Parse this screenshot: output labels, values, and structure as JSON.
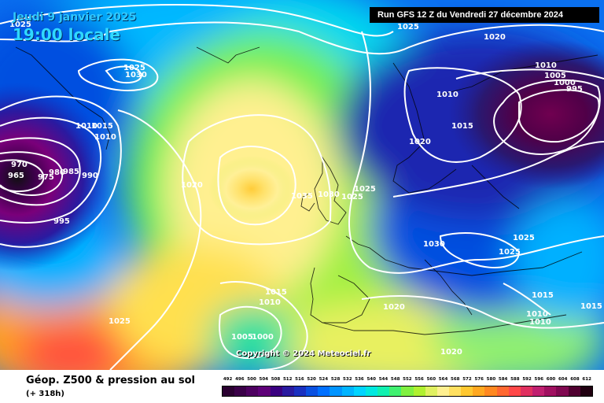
{
  "header": {
    "date": "Jeudi 9 janvier 2025",
    "time": "19:00 locale",
    "run": "Run GFS 12 Z du Vendredi 27 décembre 2024"
  },
  "copyright": "Copyright © 2024 Meteociel.fr",
  "legend": {
    "title": "Géop. Z500 & pression au sol",
    "lead": "(+ 318h)",
    "ticks": [
      "492",
      "496",
      "500",
      "504",
      "508",
      "512",
      "516",
      "520",
      "524",
      "528",
      "532",
      "536",
      "540",
      "544",
      "548",
      "552",
      "556",
      "560",
      "564",
      "568",
      "572",
      "576",
      "580",
      "584",
      "588",
      "592",
      "596",
      "600",
      "604",
      "608",
      "612"
    ],
    "colors": [
      "#2a0030",
      "#3a0048",
      "#4d0060",
      "#5e0078",
      "#3a0080",
      "#2a1aa0",
      "#1a30c0",
      "#0a50e0",
      "#0070ff",
      "#0094ff",
      "#00b4ff",
      "#00d4ff",
      "#00e8e0",
      "#10f0b0",
      "#40f070",
      "#80f040",
      "#b0f030",
      "#e0f060",
      "#fff090",
      "#ffe060",
      "#ffc830",
      "#ffa820",
      "#ff8820",
      "#ff6830",
      "#ff4848",
      "#e03060",
      "#c02070",
      "#a01060",
      "#800850",
      "#500030",
      "#200010"
    ]
  },
  "pressure_labels": [
    "1025",
    "1025",
    "1020",
    "1010",
    "1005",
    "1000",
    "995",
    "1025",
    "1030",
    "1015",
    "1010",
    "1010",
    "1015",
    "1020",
    "1010",
    "970",
    "965",
    "975",
    "980",
    "985",
    "990",
    "995",
    "1020",
    "1035",
    "1030",
    "1025",
    "1025",
    "1030",
    "1025",
    "1025",
    "1015",
    "1010",
    "1020",
    "1015",
    "1010",
    "1010",
    "1025",
    "1005",
    "1000",
    "1020",
    "1015"
  ],
  "pressure_label_notes": "isobar values in hPa drawn on map"
}
